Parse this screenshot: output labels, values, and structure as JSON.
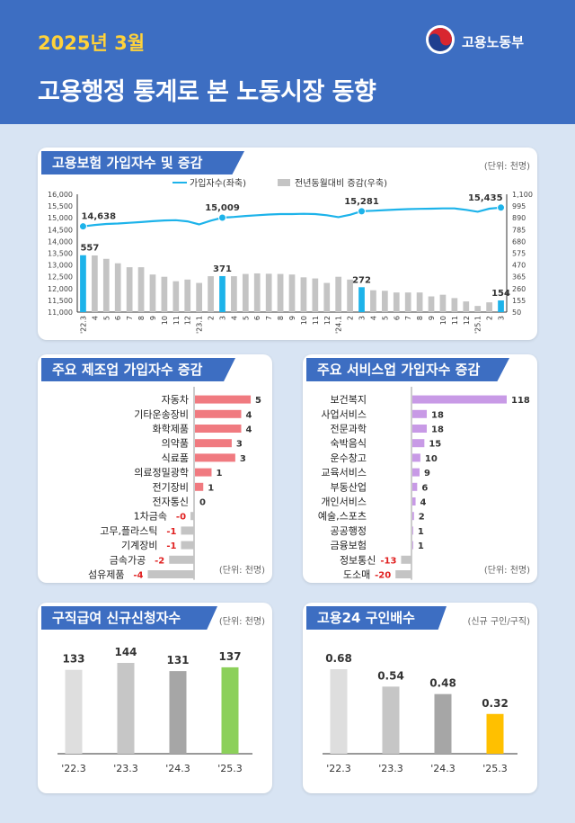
{
  "header": {
    "date": "2025년 3월",
    "title": "고용행정 통계로 본 노동시장 동향",
    "org_name": "고용노동부"
  },
  "colors": {
    "header_bg": "#3d6ec2",
    "accent_yellow": "#ffd23a",
    "line_blue": "#1db3ea",
    "bar_gray": "#c4c4c4",
    "mfg_bar": "#f07a80",
    "svc_bar": "#c89ae6",
    "neg_bar": "#c4c4c4",
    "neg_label": "#e02020",
    "green": "#8cd05a",
    "gold": "#ffc000"
  },
  "insured": {
    "tab_label": "고용보험 가입자수 및 증감",
    "unit": "(단위: 천명)",
    "legend_line": "가입자수(좌축)",
    "legend_bar": "전년동월대비 증감(우축)"
  },
  "manufacturing": {
    "tab_label": "주요 제조업 가입자수 증감",
    "unit": "(단위: 천명)"
  },
  "services": {
    "tab_label": "주요 서비스업 가입자수 증감",
    "unit": "(단위: 천명)"
  },
  "claims": {
    "tab_label": "구직급여 신규신청자수",
    "unit": "(단위: 천명)"
  },
  "jobs": {
    "tab_label": "고용24 구인배수",
    "unit": "(신규 구인/구직)"
  },
  "chart_data": [
    {
      "id": "insured",
      "type": "bar+line",
      "title": "고용보험 가입자수 및 증감",
      "categories": [
        "'22.3",
        "4",
        "5",
        "6",
        "7",
        "8",
        "9",
        "10",
        "11",
        "12",
        "'23.1",
        "2",
        "3",
        "4",
        "5",
        "6",
        "7",
        "8",
        "9",
        "10",
        "11",
        "12",
        "'24.1",
        "2",
        "3",
        "4",
        "5",
        "6",
        "7",
        "8",
        "9",
        "10",
        "11",
        "12",
        "'25.1",
        "2",
        "3"
      ],
      "series": [
        {
          "name": "가입자수(좌축)",
          "axis": "left",
          "kind": "line",
          "values": [
            14638,
            14700,
            14740,
            14760,
            14790,
            14820,
            14860,
            14890,
            14900,
            14850,
            14720,
            14880,
            15009,
            15040,
            15080,
            15110,
            15140,
            15160,
            15160,
            15170,
            15160,
            15110,
            15030,
            15130,
            15281,
            15300,
            15330,
            15350,
            15370,
            15380,
            15390,
            15400,
            15400,
            15340,
            15260,
            15390,
            15435
          ]
        },
        {
          "name": "전년동월대비 증감(우축)",
          "axis": "right",
          "kind": "bar",
          "values": [
            557,
            555,
            525,
            485,
            450,
            450,
            385,
            365,
            325,
            340,
            310,
            370,
            371,
            370,
            390,
            395,
            392,
            390,
            385,
            360,
            350,
            310,
            365,
            340,
            272,
            245,
            240,
            225,
            225,
            225,
            190,
            205,
            175,
            145,
            105,
            137,
            154
          ]
        }
      ],
      "highlight_indices": [
        0,
        12,
        24,
        36
      ],
      "left_axis": {
        "min": 11000,
        "max": 16000,
        "ticks": [
          "11,000",
          "11,500",
          "12,000",
          "12,500",
          "13,000",
          "13,500",
          "14,000",
          "14,500",
          "15,000",
          "15,500",
          "16,000"
        ]
      },
      "right_axis": {
        "min": 50,
        "max": 1100,
        "ticks": [
          "50",
          "155",
          "260",
          "365",
          "470",
          "575",
          "680",
          "785",
          "890",
          "995",
          "1,100"
        ]
      },
      "line_labels": [
        "14,638",
        "15,009",
        "15,281",
        "15,435"
      ],
      "bar_labels": [
        "557",
        "371",
        "272",
        "154"
      ]
    },
    {
      "id": "manufacturing",
      "type": "bar",
      "orientation": "horizontal",
      "title": "주요 제조업 가입자수 증감",
      "categories": [
        "자동차",
        "기타운송장비",
        "화학제품",
        "의약품",
        "식료품",
        "의료정밀광학",
        "전기장비",
        "전자통신",
        "1차금속",
        "고무,플라스틱",
        "기계장비",
        "금속가공",
        "섬유제품"
      ],
      "values": [
        4.7,
        3.9,
        3.9,
        3.1,
        3.4,
        1.4,
        0.7,
        0.0,
        -0.3,
        -1.1,
        -1.1,
        -2.1,
        -3.9
      ],
      "data_labels": [
        "5",
        "4",
        "4",
        "3",
        "3",
        "1",
        "1",
        "0",
        "-0",
        "-1",
        "-1",
        "-2",
        "-4"
      ]
    },
    {
      "id": "services",
      "type": "bar",
      "orientation": "horizontal",
      "title": "주요 서비스업 가입자수 증감",
      "categories": [
        "보건복지",
        "사업서비스",
        "전문과학",
        "숙박음식",
        "운수창고",
        "교육서비스",
        "부동산업",
        "개인서비스",
        "예술,스포츠",
        "공공행정",
        "금융보험",
        "정보통신",
        "도소매"
      ],
      "values": [
        118,
        18,
        18,
        15,
        10,
        9,
        6,
        4,
        2,
        1,
        1,
        -13,
        -20
      ],
      "data_labels": [
        "118",
        "18",
        "18",
        "15",
        "10",
        "9",
        "6",
        "4",
        "2",
        "1",
        "1",
        "-13",
        "-20"
      ]
    },
    {
      "id": "claims",
      "type": "bar",
      "title": "구직급여 신규신청자수",
      "categories": [
        "'22.3",
        "'23.3",
        "'24.3",
        "'25.3"
      ],
      "values": [
        133,
        144,
        131,
        137
      ],
      "data_labels": [
        "133",
        "144",
        "131",
        "137"
      ]
    },
    {
      "id": "jobs",
      "type": "bar",
      "title": "고용24 구인배수",
      "categories": [
        "'22.3",
        "'23.3",
        "'24.3",
        "'25.3"
      ],
      "values": [
        0.68,
        0.54,
        0.48,
        0.32
      ],
      "data_labels": [
        "0.68",
        "0.54",
        "0.48",
        "0.32"
      ]
    }
  ]
}
